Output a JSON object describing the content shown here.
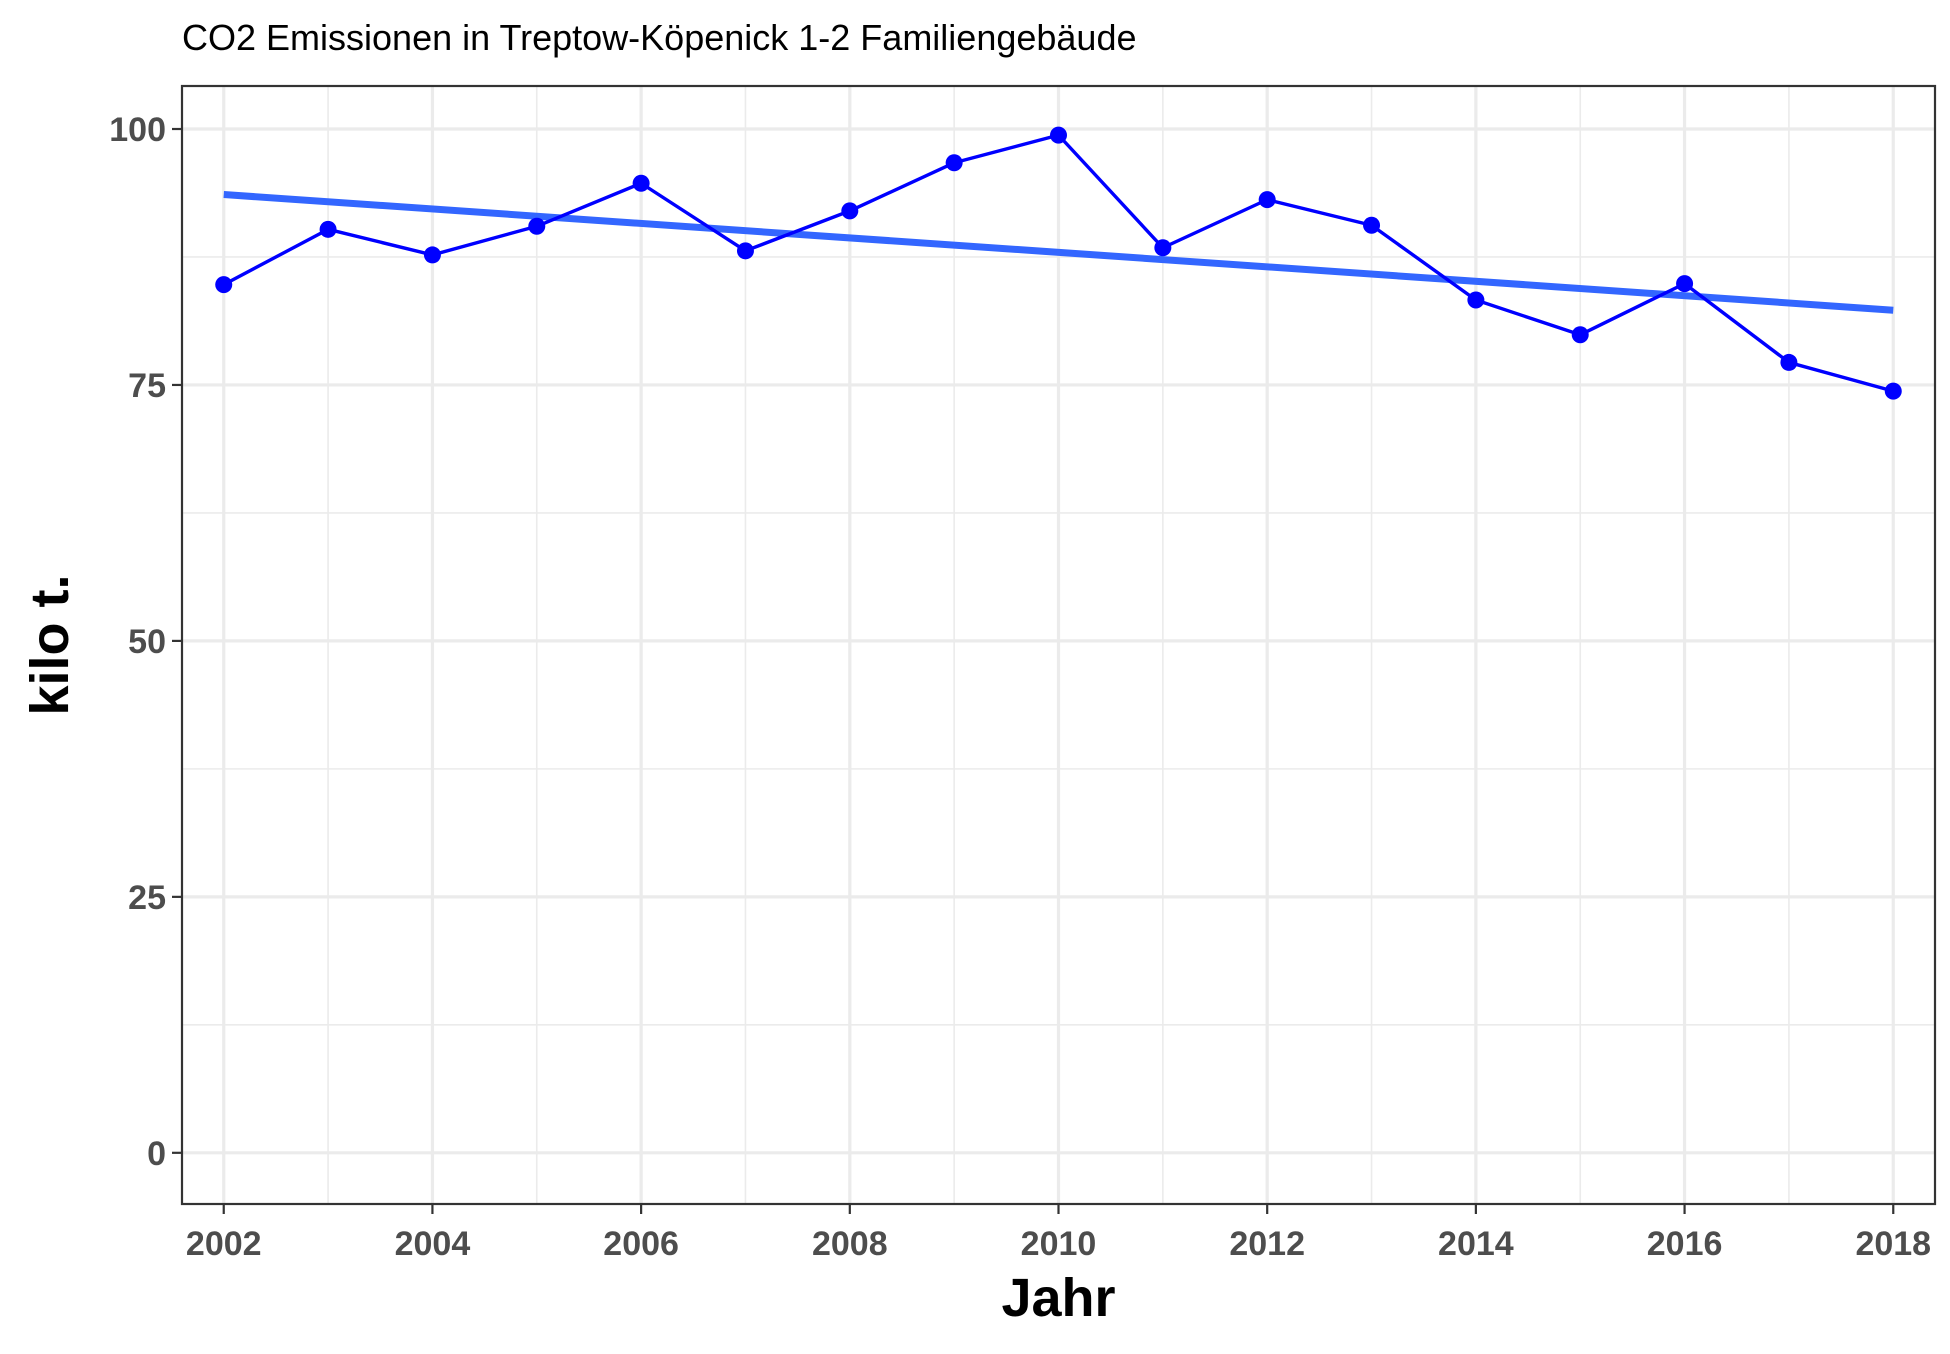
{
  "chart_data": {
    "type": "line",
    "title": "CO2 Emissionen in Treptow-Köpenick 1-2 Familiengebäude",
    "xlabel": "Jahr",
    "ylabel": "kilo t.",
    "xlim": [
      2001.6,
      2018.4
    ],
    "ylim": [
      -5,
      104.2
    ],
    "x_ticks": [
      "2002",
      "2004",
      "2006",
      "2008",
      "2010",
      "2012",
      "2014",
      "2016",
      "2018"
    ],
    "y_ticks": [
      "0",
      "25",
      "50",
      "75",
      "100"
    ],
    "grid": true,
    "series": [
      {
        "x": [
          2002,
          2003,
          2004,
          2005,
          2006,
          2007,
          2008,
          2009,
          2010,
          2011,
          2012,
          2013,
          2014,
          2015,
          2016,
          2017,
          2018
        ],
        "y": [
          84.8,
          90.2,
          87.7,
          90.5,
          94.7,
          88.1,
          92.0,
          96.7,
          99.4,
          88.4,
          93.1,
          90.6,
          83.3,
          79.9,
          84.9,
          77.2,
          74.4
        ],
        "color": "#0000ff",
        "marker": "circle"
      }
    ],
    "trend_line": {
      "x": [
        2002,
        2018
      ],
      "y": [
        93.6,
        82.3
      ],
      "color": "#3366ff"
    }
  }
}
